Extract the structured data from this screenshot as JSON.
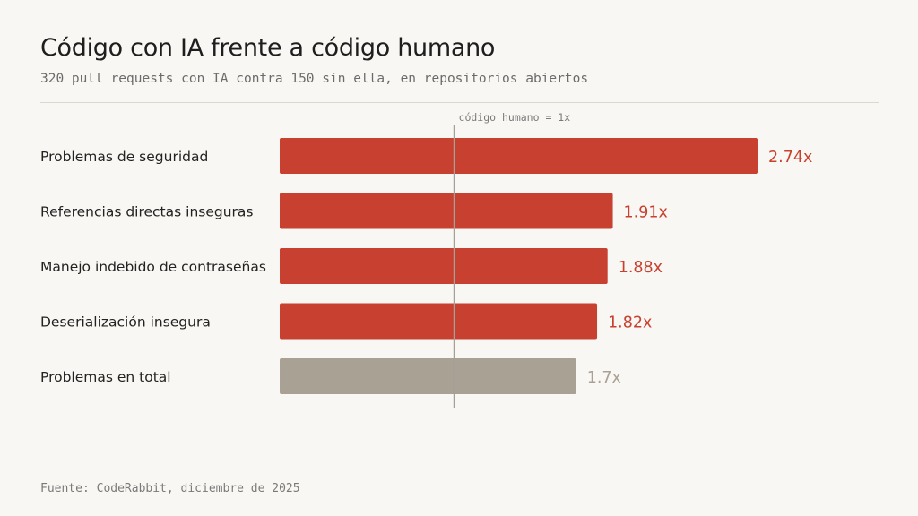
{
  "header": {
    "title": "Código con IA frente a código humano",
    "subtitle": "320 pull requests con IA contra 150 sin ella, en repositorios abiertos"
  },
  "footer": {
    "source": "Fuente: CodeRabbit, diciembre de 2025"
  },
  "colors": {
    "accent": "#c8402f",
    "neutral": "#aaa195",
    "reference_line": "#a3a09a"
  },
  "chart_data": {
    "type": "bar",
    "orientation": "horizontal",
    "title": "Código con IA frente a código humano",
    "subtitle": "320 pull requests con IA contra 150 sin ella, en repositorios abiertos",
    "categories": [
      "Problemas de seguridad",
      "Referencias directas inseguras",
      "Manejo indebido de contraseñas",
      "Deserialización insegura",
      "Problemas en total"
    ],
    "values": [
      2.74,
      1.91,
      1.88,
      1.82,
      1.7
    ],
    "value_labels": [
      "2.74x",
      "1.91x",
      "1.88x",
      "1.82x",
      "1.7x"
    ],
    "highlight": [
      true,
      true,
      true,
      true,
      false
    ],
    "reference_line": {
      "value": 1,
      "label": "código humano = 1x"
    },
    "xlim": [
      0,
      2.74
    ],
    "grid": false,
    "xlabel": "",
    "ylabel": ""
  }
}
